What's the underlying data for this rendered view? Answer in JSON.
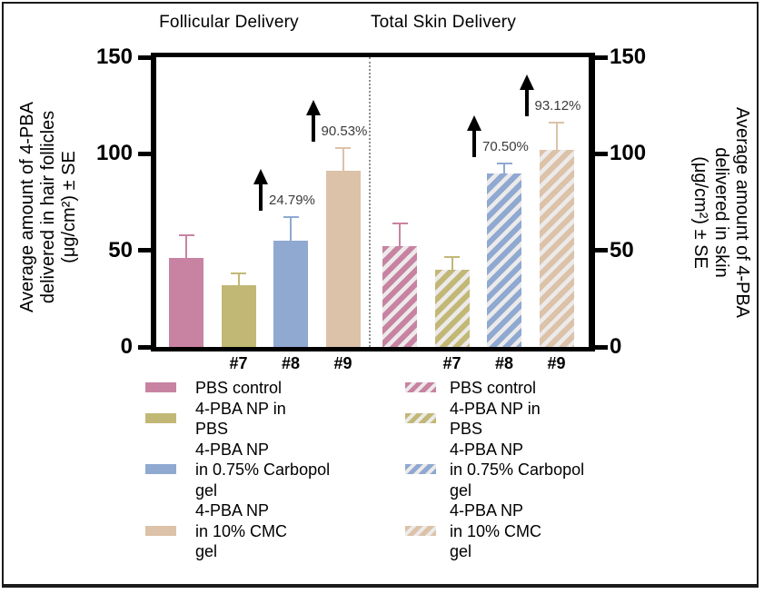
{
  "titles": {
    "left": "Follicular Delivery",
    "right": "Total Skin Delivery"
  },
  "y_axis_left": {
    "label_lines": [
      "Average amount of 4-PBA",
      "delivered in hair follicles",
      "(μg/cm²) ± SE"
    ]
  },
  "y_axis_right": {
    "label_lines": [
      "Average amount of 4-PBA",
      "delivered in skin",
      "(μg/cm²) ± SE"
    ]
  },
  "colors": {
    "pbs_pink": "#c883a2",
    "np_olive": "#c2b876",
    "carbopol_blue": "#8fa9d1",
    "cmc_tan": "#dcc2a8",
    "hatch_light": "#eceaea",
    "divider_gray": "#8f8f8f",
    "annotation_text": "#3b3b3b",
    "axis_black": "#000000"
  },
  "bar_color_keys": [
    "pbs_pink",
    "np_olive",
    "carbopol_blue",
    "cmc_tan"
  ],
  "chart_data": [
    {
      "type": "bar",
      "panel_title": "Follicular Delivery",
      "ylabel": "Average amount of 4-PBA delivered in hair follicles (μg/cm²) ± SE",
      "ylim": [
        0,
        150
      ],
      "yticks": [
        0,
        50,
        100,
        150
      ],
      "categories": [
        "PBS control",
        "4-PBA NP in PBS",
        "4-PBA NP in 0.75% Carbopol gel",
        "4-PBA NP in 10% CMC gel"
      ],
      "x_tick_labels": [
        "",
        "#7",
        "#8",
        "#9"
      ],
      "values": [
        46,
        32,
        55,
        91
      ],
      "errors_se": [
        12.5,
        6.5,
        12.5,
        12.5
      ],
      "hatched": false,
      "annotations": [
        {
          "bar_index": 2,
          "text": "24.79%"
        },
        {
          "bar_index": 3,
          "text": "90.53%"
        }
      ]
    },
    {
      "type": "bar",
      "panel_title": "Total Skin Delivery",
      "ylabel": "Average amount of 4-PBA delivered in skin (μg/cm²) ± SE",
      "ylim": [
        0,
        150
      ],
      "yticks": [
        0,
        50,
        100,
        150
      ],
      "categories": [
        "PBS control",
        "4-PBA NP in PBS",
        "4-PBA NP in 0.75% Carbopol gel",
        "4-PBA NP in 10% CMC gel"
      ],
      "x_tick_labels": [
        "",
        "#7",
        "#8",
        "#9"
      ],
      "values": [
        52,
        40,
        90,
        102
      ],
      "errors_se": [
        12.5,
        7,
        5.5,
        14.5
      ],
      "hatched": true,
      "annotations": [
        {
          "bar_index": 2,
          "text": "70.50%"
        },
        {
          "bar_index": 3,
          "text": "93.12%"
        }
      ]
    }
  ],
  "legend": {
    "items": [
      {
        "color_key": "pbs_pink",
        "lines": [
          "PBS control"
        ]
      },
      {
        "color_key": "np_olive",
        "lines": [
          "4-PBA NP in",
          "PBS"
        ]
      },
      {
        "color_key": "carbopol_blue",
        "lines": [
          "4-PBA NP",
          "in 0.75% Carbopol",
          "gel"
        ]
      },
      {
        "color_key": "cmc_tan",
        "lines": [
          "4-PBA NP",
          "in 10% CMC",
          "gel"
        ]
      }
    ]
  }
}
